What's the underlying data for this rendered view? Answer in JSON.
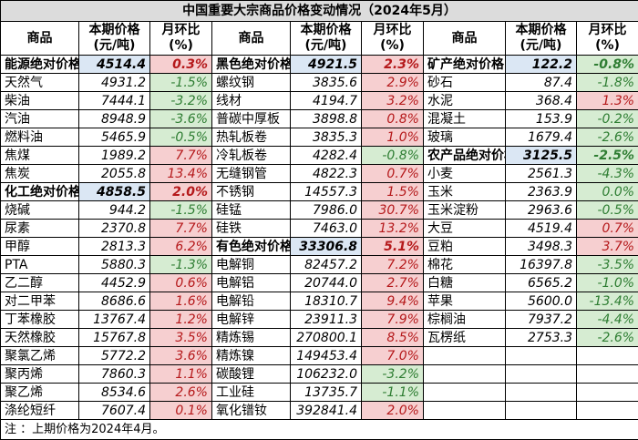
{
  "title": "中国重要大宗商品价格变动情况（2024年5月）",
  "headers": {
    "product": "商品",
    "price_line1": "本期价格",
    "price_line2": "(元/吨)",
    "change_line1": "月环比",
    "change_line2": "(%)"
  },
  "col1": [
    {
      "name": "能源绝对价格",
      "price": "4514.4",
      "change": "0.3%",
      "dir": "pos",
      "cat": true
    },
    {
      "name": "天然气",
      "price": "4931.2",
      "change": "-1.5%",
      "dir": "neg"
    },
    {
      "name": "柴油",
      "price": "7444.1",
      "change": "-3.2%",
      "dir": "neg"
    },
    {
      "name": "汽油",
      "price": "8948.9",
      "change": "-3.6%",
      "dir": "neg"
    },
    {
      "name": "燃料油",
      "price": "5465.9",
      "change": "-0.5%",
      "dir": "neg"
    },
    {
      "name": "焦煤",
      "price": "1989.2",
      "change": "7.7%",
      "dir": "pos"
    },
    {
      "name": "焦炭",
      "price": "2055.8",
      "change": "13.4%",
      "dir": "pos"
    },
    {
      "name": "化工绝对价格",
      "price": "4858.5",
      "change": "2.0%",
      "dir": "pos",
      "cat": true
    },
    {
      "name": "烧碱",
      "price": "944.2",
      "change": "-1.5%",
      "dir": "neg"
    },
    {
      "name": "尿素",
      "price": "2370.8",
      "change": "7.7%",
      "dir": "pos"
    },
    {
      "name": "甲醇",
      "price": "2813.3",
      "change": "6.2%",
      "dir": "pos"
    },
    {
      "name": "PTA",
      "price": "5880.3",
      "change": "-1.3%",
      "dir": "neg"
    },
    {
      "name": "乙二醇",
      "price": "4452.9",
      "change": "0.6%",
      "dir": "pos"
    },
    {
      "name": "对二甲苯",
      "price": "8686.6",
      "change": "1.6%",
      "dir": "pos"
    },
    {
      "name": "丁苯橡胶",
      "price": "13767.4",
      "change": "1.2%",
      "dir": "pos"
    },
    {
      "name": "天然橡胶",
      "price": "15767.8",
      "change": "3.5%",
      "dir": "pos"
    },
    {
      "name": "聚氯乙烯",
      "price": "5772.2",
      "change": "3.6%",
      "dir": "pos"
    },
    {
      "name": "聚丙烯",
      "price": "7860.3",
      "change": "1.1%",
      "dir": "pos"
    },
    {
      "name": "聚乙烯",
      "price": "8534.6",
      "change": "2.6%",
      "dir": "pos"
    },
    {
      "name": "涤纶短纤",
      "price": "7607.4",
      "change": "0.1%",
      "dir": "pos"
    }
  ],
  "col2": [
    {
      "name": "黑色绝对价格",
      "price": "4921.5",
      "change": "2.3%",
      "dir": "pos",
      "cat": true
    },
    {
      "name": "螺纹钢",
      "price": "3835.6",
      "change": "2.9%",
      "dir": "pos"
    },
    {
      "name": "线材",
      "price": "4194.7",
      "change": "3.2%",
      "dir": "pos"
    },
    {
      "name": "普碳中厚板",
      "price": "3898.8",
      "change": "0.8%",
      "dir": "pos"
    },
    {
      "name": "热轧板卷",
      "price": "3835.3",
      "change": "1.0%",
      "dir": "pos"
    },
    {
      "name": "冷轧板卷",
      "price": "4282.4",
      "change": "-0.8%",
      "dir": "neg"
    },
    {
      "name": "无缝钢管",
      "price": "4822.3",
      "change": "0.7%",
      "dir": "pos"
    },
    {
      "name": "不锈钢",
      "price": "14557.3",
      "change": "1.5%",
      "dir": "pos"
    },
    {
      "name": "硅锰",
      "price": "7986.0",
      "change": "30.7%",
      "dir": "pos"
    },
    {
      "name": "硅铁",
      "price": "7463.0",
      "change": "13.2%",
      "dir": "pos"
    },
    {
      "name": "有色绝对价格",
      "price": "33306.8",
      "change": "5.1%",
      "dir": "pos",
      "cat": true
    },
    {
      "name": "电解铜",
      "price": "82457.2",
      "change": "7.2%",
      "dir": "pos"
    },
    {
      "name": "电解铝",
      "price": "20744.0",
      "change": "2.7%",
      "dir": "pos"
    },
    {
      "name": "电解铅",
      "price": "18310.7",
      "change": "9.4%",
      "dir": "pos"
    },
    {
      "name": "电解锌",
      "price": "23911.3",
      "change": "7.9%",
      "dir": "pos"
    },
    {
      "name": "精炼锡",
      "price": "270800.1",
      "change": "8.5%",
      "dir": "pos"
    },
    {
      "name": "精炼镍",
      "price": "149453.4",
      "change": "7.0%",
      "dir": "pos"
    },
    {
      "name": "碳酸锂",
      "price": "106232.0",
      "change": "-3.2%",
      "dir": "neg"
    },
    {
      "name": "工业硅",
      "price": "13735.7",
      "change": "-1.1%",
      "dir": "neg"
    },
    {
      "name": "氧化镨钕",
      "price": "392841.4",
      "change": "2.0%",
      "dir": "pos"
    }
  ],
  "col3": [
    {
      "name": "矿产绝对价格",
      "price": "122.2",
      "change": "-0.8%",
      "dir": "neg",
      "cat": true
    },
    {
      "name": "砂石",
      "price": "87.4",
      "change": "-1.8%",
      "dir": "neg"
    },
    {
      "name": "水泥",
      "price": "368.4",
      "change": "1.3%",
      "dir": "pos"
    },
    {
      "name": "混凝土",
      "price": "153.9",
      "change": "-0.2%",
      "dir": "neg"
    },
    {
      "name": "玻璃",
      "price": "1679.4",
      "change": "-2.6%",
      "dir": "neg"
    },
    {
      "name": "农产品绝对价格",
      "price": "3125.5",
      "change": "-2.5%",
      "dir": "neg",
      "cat": true
    },
    {
      "name": "小麦",
      "price": "2561.3",
      "change": "-4.3%",
      "dir": "neg"
    },
    {
      "name": "玉米",
      "price": "2363.9",
      "change": "0.0%",
      "dir": "neg"
    },
    {
      "name": "玉米淀粉",
      "price": "2963.6",
      "change": "-0.5%",
      "dir": "neg"
    },
    {
      "name": "大豆",
      "price": "4519.4",
      "change": "0.7%",
      "dir": "pos"
    },
    {
      "name": "豆粕",
      "price": "3498.3",
      "change": "3.7%",
      "dir": "pos"
    },
    {
      "name": "棉花",
      "price": "16397.8",
      "change": "-3.5%",
      "dir": "neg"
    },
    {
      "name": "白糖",
      "price": "6565.2",
      "change": "-1.0%",
      "dir": "neg"
    },
    {
      "name": "苹果",
      "price": "5600.0",
      "change": "-13.4%",
      "dir": "neg"
    },
    {
      "name": "棕榈油",
      "price": "7937.2",
      "change": "-4.4%",
      "dir": "neg"
    },
    {
      "name": "瓦楞纸",
      "price": "2753.3",
      "change": "-2.6%",
      "dir": "neg"
    }
  ],
  "note": "注 ：上期价格为2024年4月。"
}
